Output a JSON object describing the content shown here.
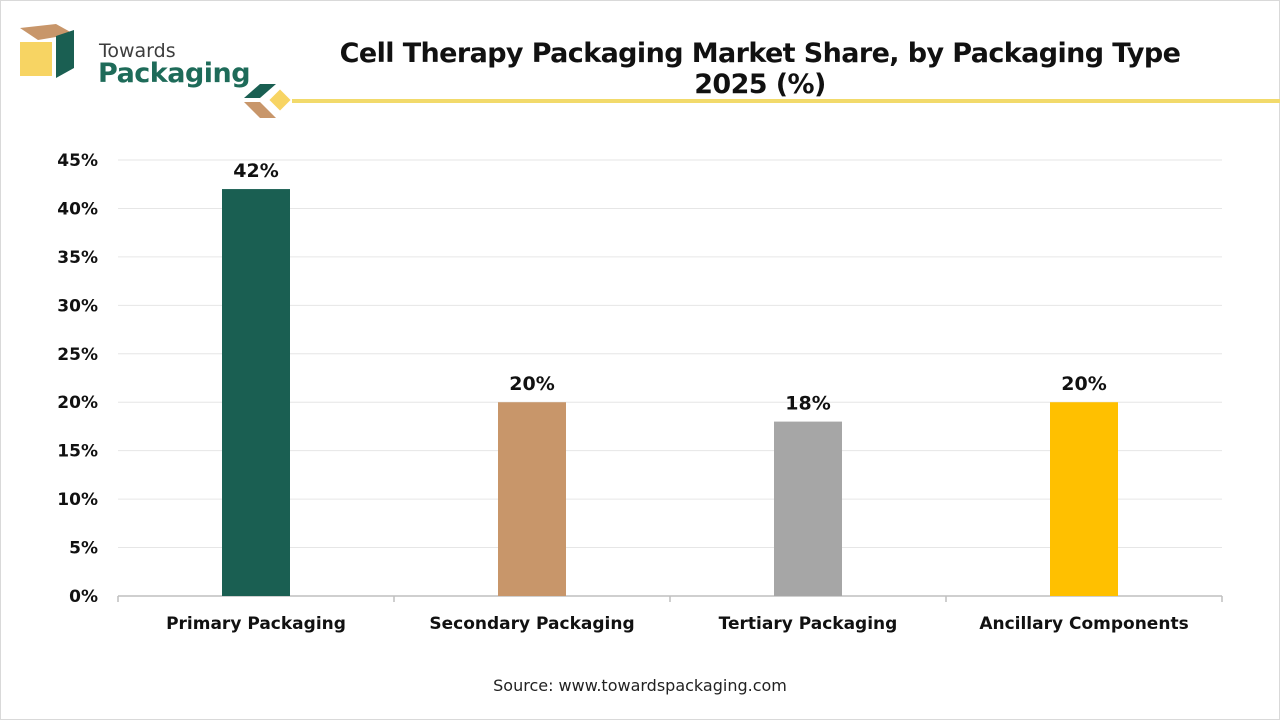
{
  "brand": {
    "name_line1": "Towards",
    "name_line2": "Packaging",
    "colors": {
      "green": "#1a5f52",
      "tan": "#c8966a",
      "yellow": "#f7d463",
      "gold_line": "#f2da6b"
    }
  },
  "source_text": "Source: www.towardspackaging.com",
  "chart_data": {
    "type": "bar",
    "title": "Cell Therapy Packaging Market Share, by Packaging Type 2025 (%)",
    "xlabel": "",
    "ylabel": "",
    "categories": [
      "Primary Packaging",
      "Secondary Packaging",
      "Tertiary Packaging",
      "Ancillary Components"
    ],
    "values": [
      42,
      20,
      18,
      20
    ],
    "value_labels": [
      "42%",
      "20%",
      "18%",
      "20%"
    ],
    "bar_colors": [
      "#1a5f52",
      "#c8966a",
      "#a6a6a6",
      "#ffc000"
    ],
    "ylim": [
      0,
      45
    ],
    "yticks": [
      0,
      5,
      10,
      15,
      20,
      25,
      30,
      35,
      40,
      45
    ],
    "ytick_labels": [
      "0%",
      "5%",
      "10%",
      "15%",
      "20%",
      "25%",
      "30%",
      "35%",
      "40%",
      "45%"
    ],
    "grid": true,
    "legend": "none"
  }
}
